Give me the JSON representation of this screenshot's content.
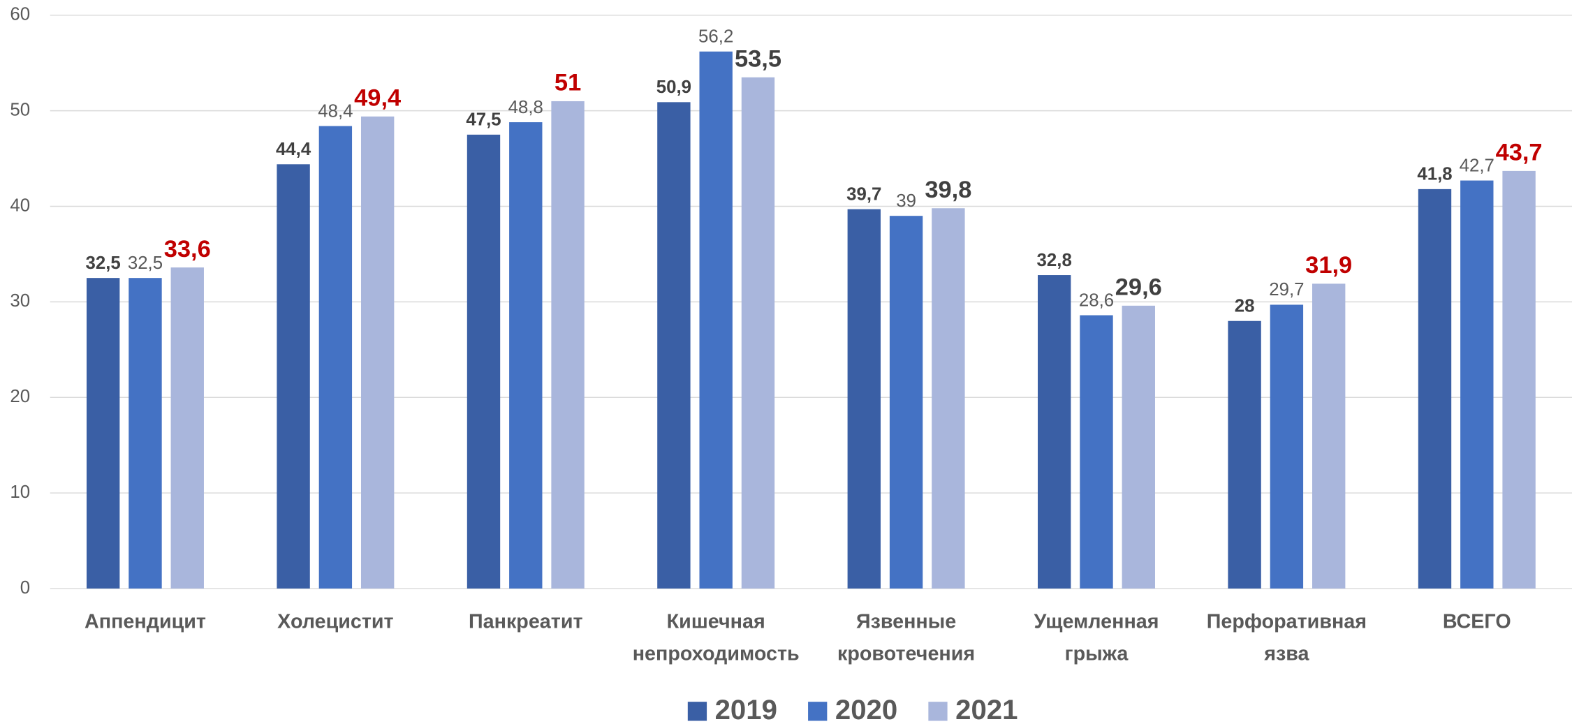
{
  "chart_data": {
    "type": "bar",
    "categories": [
      "Аппендицит",
      "Холецистит",
      "Панкреатит",
      "Кишечная непроходимость",
      "Язвенные кровотечения",
      "Ущемленная грыжа",
      "Перфоративная язва",
      "ВСЕГО"
    ],
    "series": [
      {
        "name": "2019",
        "color": "#3a5fa5",
        "values": [
          32.5,
          44.4,
          47.5,
          50.9,
          39.7,
          32.8,
          28,
          41.8
        ],
        "value_labels": [
          "32,5",
          "44,4",
          "47,5",
          "50,9",
          "39,7",
          "32,8",
          "28",
          "41,8"
        ]
      },
      {
        "name": "2020",
        "color": "#4472c4",
        "values": [
          32.5,
          48.4,
          48.8,
          56.2,
          39,
          28.6,
          29.7,
          42.7
        ],
        "value_labels": [
          "32,5",
          "48,4",
          "48,8",
          "56,2",
          "39",
          "28,6",
          "29,7",
          "42,7"
        ]
      },
      {
        "name": "2021",
        "color": "#a9b6dc",
        "values": [
          33.6,
          49.4,
          51,
          53.5,
          39.8,
          29.6,
          31.9,
          43.7
        ],
        "value_labels": [
          "33,6",
          "49,4",
          "51",
          "53,5",
          "39,8",
          "29,6",
          "31,9",
          "43,7"
        ],
        "label_colors": [
          "#c00000",
          "#c00000",
          "#c00000",
          "#404040",
          "#404040",
          "#404040",
          "#c00000",
          "#c00000"
        ]
      }
    ],
    "ylim": [
      0,
      60
    ],
    "yticks": [
      0,
      10,
      20,
      30,
      40,
      50,
      60
    ],
    "grid": true,
    "legend": "bottom"
  }
}
